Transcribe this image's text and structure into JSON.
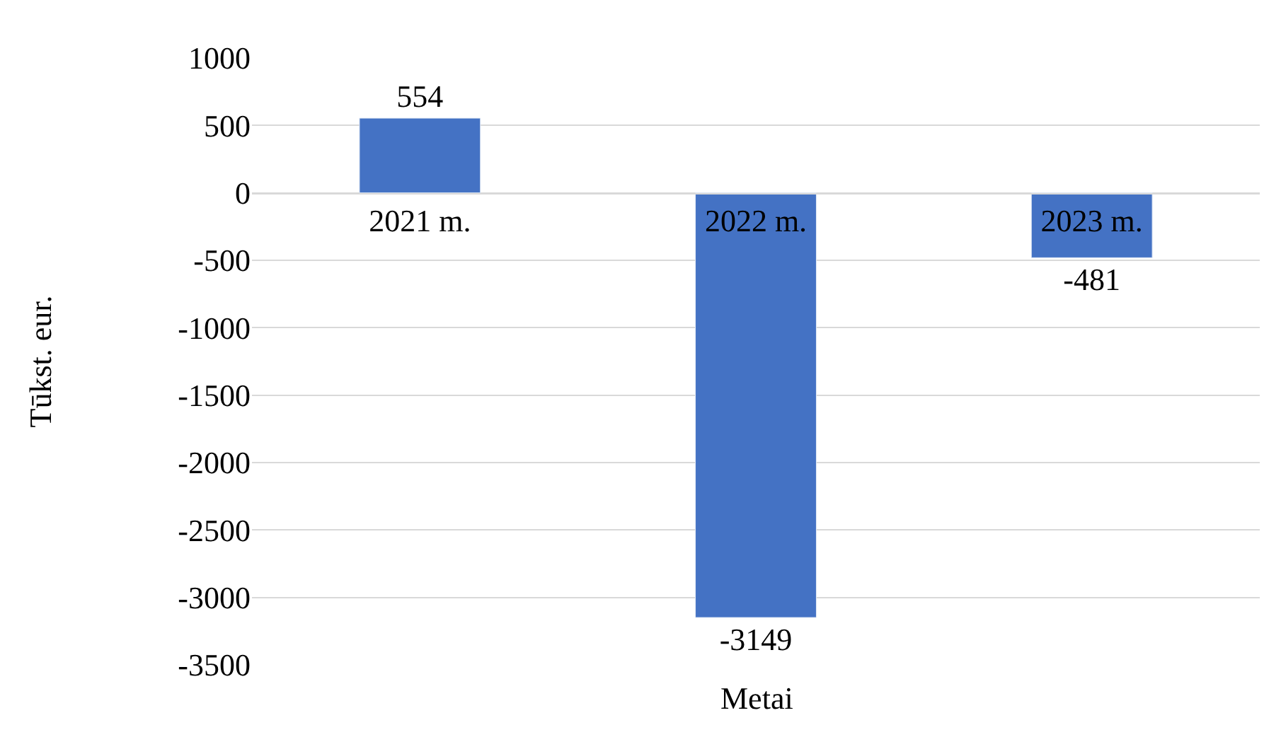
{
  "chart_data": {
    "type": "bar",
    "xlabel": "Metai",
    "ylabel": "Tūkst. eur.",
    "categories": [
      "2021 m.",
      "2022 m.",
      "2023 m."
    ],
    "series": [
      {
        "color": "#4472c4",
        "values": [
          554,
          -3149,
          -481
        ]
      }
    ],
    "ylim": [
      -3500,
      1000
    ],
    "yticks": [
      -3500,
      -3000,
      -2500,
      -2000,
      -1500,
      -1000,
      -500,
      0,
      500,
      1000
    ],
    "grid": "y",
    "data_labels": true,
    "legend": false
  }
}
